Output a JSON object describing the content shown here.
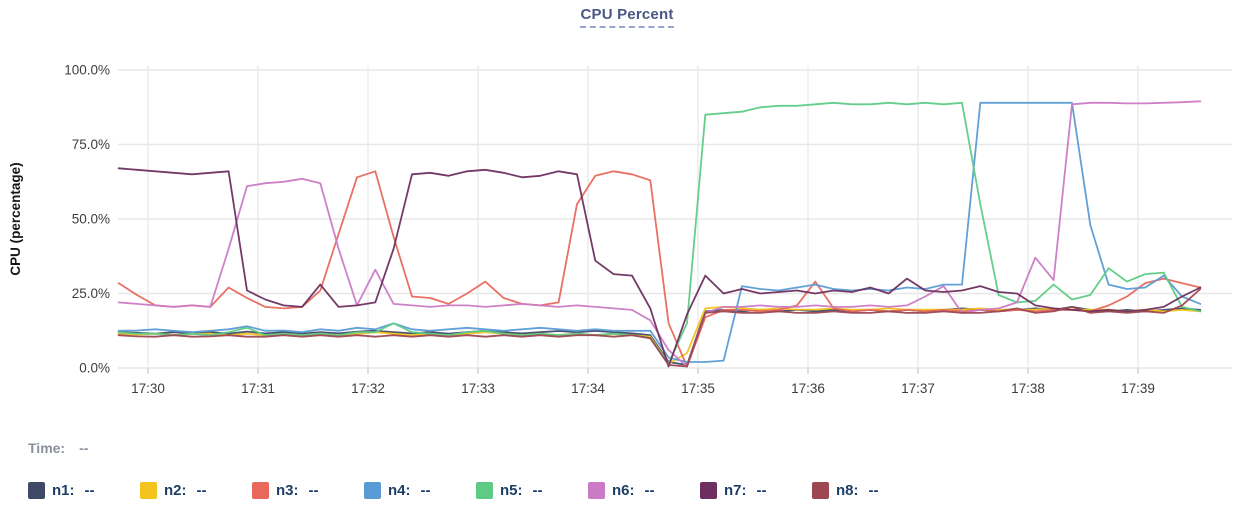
{
  "header": {
    "title": "CPU Percent"
  },
  "status": {
    "time_label": "Time:",
    "time_value": "--"
  },
  "legend": {
    "items": [
      {
        "label": "n1:",
        "value": "--",
        "color": "#3e4a67"
      },
      {
        "label": "n2:",
        "value": "--",
        "color": "#f2c41d"
      },
      {
        "label": "n3:",
        "value": "--",
        "color": "#e8685c"
      },
      {
        "label": "n4:",
        "value": "--",
        "color": "#5b9bd5"
      },
      {
        "label": "n5:",
        "value": "--",
        "color": "#5ecb85"
      },
      {
        "label": "n6:",
        "value": "--",
        "color": "#cb7ac5"
      },
      {
        "label": "n7:",
        "value": "--",
        "color": "#6d2f5f"
      },
      {
        "label": "n8:",
        "value": "--",
        "color": "#9c4752"
      }
    ]
  },
  "chart_data": {
    "type": "line",
    "title": "CPU Percent",
    "xlabel": "",
    "ylabel": "CPU (percentage)",
    "ylim": [
      0,
      100
    ],
    "grid": true,
    "legend_position": "bottom",
    "y_ticks": [
      "100.0%",
      "75.0%",
      "50.0%",
      "25.0%",
      "0.0%"
    ],
    "y_tick_values": [
      100,
      75,
      50,
      25,
      0
    ],
    "x_ticks": [
      "17:30",
      "17:31",
      "17:32",
      "17:33",
      "17:34",
      "17:35",
      "17:36",
      "17:37",
      "17:38",
      "17:39"
    ],
    "x_start_minutes": -0.267,
    "x_step_minutes": 0.16667,
    "series": [
      {
        "name": "n1",
        "color": "#3e4a67",
        "values": [
          12,
          11.8,
          11.5,
          12,
          11.6,
          12,
          11.5,
          12.2,
          11.6,
          12,
          11.5,
          12,
          11.6,
          12.2,
          12.5,
          12,
          11.6,
          12,
          11.5,
          12,
          12.5,
          12,
          11.6,
          12,
          12.4,
          12,
          12.5,
          12,
          11.6,
          11,
          2,
          1,
          19,
          19.5,
          19,
          19.5,
          19,
          19.5,
          19,
          19.5,
          19,
          19.5,
          19,
          19.5,
          19,
          19.5,
          20,
          19.5,
          19,
          19.5,
          20,
          19.5,
          20.5,
          19.5,
          19,
          19.5,
          19,
          19.5,
          20,
          19.5
        ]
      },
      {
        "name": "n2",
        "color": "#f2c41d",
        "values": [
          11.5,
          11.2,
          11.5,
          11,
          11.4,
          11.5,
          11,
          11.5,
          11,
          11.4,
          11,
          11.5,
          11,
          11.4,
          12,
          11.5,
          11,
          11.4,
          11,
          11.5,
          12,
          11.5,
          11,
          11.4,
          11,
          11.5,
          11,
          11.4,
          11,
          10.5,
          1.5,
          5,
          20,
          20.5,
          20,
          19.6,
          20,
          19.6,
          19.6,
          20,
          19.6,
          19.6,
          20,
          19.6,
          19.6,
          19.6,
          19.6,
          20,
          19.6,
          19.6,
          19.6,
          20,
          19.6,
          19.6,
          19.6,
          19,
          19.6,
          19,
          19.5,
          19
        ]
      },
      {
        "name": "n3",
        "color": "#e8685c",
        "values": [
          28.5,
          24.5,
          21,
          20.5,
          21,
          20.5,
          27,
          23.5,
          20.5,
          20,
          20.5,
          26,
          45,
          64,
          66,
          44,
          24,
          23.5,
          21.5,
          25,
          29,
          23.5,
          21.5,
          21,
          22,
          55,
          64.5,
          66,
          65,
          63,
          15,
          0.5,
          17,
          19.5,
          19.5,
          19,
          19.5,
          21,
          29,
          20,
          19,
          19.5,
          19,
          19.5,
          19,
          19.5,
          19,
          19.5,
          19,
          19.5,
          19,
          19.5,
          19.5,
          19,
          21,
          24,
          28.5,
          30,
          28.5,
          27
        ]
      },
      {
        "name": "n4",
        "color": "#5b9bd5",
        "values": [
          12.5,
          12.6,
          13,
          12.5,
          12,
          12.5,
          13,
          14,
          12.5,
          12.6,
          12,
          13,
          12.5,
          13.5,
          13,
          15,
          13,
          12.5,
          13,
          13.5,
          13,
          12.5,
          13,
          13.5,
          13,
          12.5,
          13,
          12.5,
          12.5,
          12.5,
          3.5,
          2,
          2,
          2.5,
          27.5,
          26.5,
          26,
          27,
          28,
          26.5,
          26,
          26.5,
          26,
          27,
          26.5,
          28,
          28,
          89,
          89,
          89,
          89,
          89,
          89,
          48,
          28,
          26.5,
          27,
          31,
          24,
          21.5
        ]
      },
      {
        "name": "n5",
        "color": "#5ecb85",
        "values": [
          12,
          11.5,
          11.5,
          11,
          11.5,
          11,
          12,
          13.5,
          11,
          11.5,
          11,
          11.5,
          11,
          12,
          12,
          15,
          12,
          11.5,
          11,
          12,
          12.5,
          11.5,
          11,
          11.5,
          11,
          11.5,
          11,
          11.5,
          11,
          10,
          1.5,
          15,
          85,
          85.5,
          86,
          87.5,
          88,
          88,
          88.5,
          89,
          88.5,
          88.5,
          89,
          88.5,
          89,
          88.5,
          89,
          55,
          24.5,
          22,
          22.5,
          28,
          23,
          24.5,
          33.5,
          29,
          31.5,
          32,
          20.5,
          19
        ]
      },
      {
        "name": "n6",
        "color": "#cb7ac5",
        "values": [
          22,
          21.5,
          21,
          20.5,
          21,
          20.5,
          40,
          61,
          62,
          62.5,
          63.5,
          62,
          40,
          21,
          33,
          21.5,
          21,
          20.5,
          21,
          21,
          20.5,
          21,
          21.5,
          21,
          20.5,
          21,
          20.5,
          20,
          19.5,
          16,
          6,
          0.5,
          18.5,
          20.5,
          20.5,
          21,
          20.5,
          20.5,
          21,
          20.5,
          20.5,
          21,
          20.5,
          21,
          24,
          27.5,
          18.5,
          19.5,
          20,
          22,
          37,
          29.5,
          88.5,
          89,
          89,
          88.8,
          88.8,
          89,
          89.2,
          89.5
        ]
      },
      {
        "name": "n7",
        "color": "#6d2f5f",
        "values": [
          67,
          66.5,
          66,
          65.5,
          65,
          65.5,
          66,
          26,
          23,
          21,
          20.5,
          28,
          20.5,
          21,
          22,
          40,
          65,
          65.5,
          64.5,
          66,
          66.5,
          65.5,
          64,
          64.5,
          66,
          65,
          36,
          31.5,
          31,
          20,
          0.5,
          18,
          31,
          25,
          26.5,
          25,
          25.5,
          26,
          25,
          26,
          25.5,
          27,
          25,
          30,
          26,
          25.5,
          26,
          27.5,
          25.5,
          25,
          21,
          20,
          19.5,
          19,
          19.5,
          19,
          19.5,
          20.5,
          24,
          27
        ]
      },
      {
        "name": "n8",
        "color": "#9c4752",
        "values": [
          11,
          10.6,
          10.5,
          11,
          10.5,
          10.6,
          11,
          10.5,
          10.5,
          11,
          10.5,
          11,
          10.5,
          11,
          10.5,
          11,
          10.5,
          11,
          10.5,
          11,
          10.5,
          11,
          10.5,
          11,
          10.5,
          11,
          11,
          10.5,
          11,
          10,
          1,
          0.5,
          18.5,
          19,
          18.5,
          18.5,
          19,
          18.5,
          18.5,
          19,
          18.5,
          18.5,
          19,
          18.5,
          18.5,
          19,
          18.5,
          18.5,
          19,
          20,
          18.5,
          19,
          20.5,
          18.5,
          19,
          18.5,
          19,
          18.5,
          21,
          26.5
        ]
      }
    ]
  }
}
